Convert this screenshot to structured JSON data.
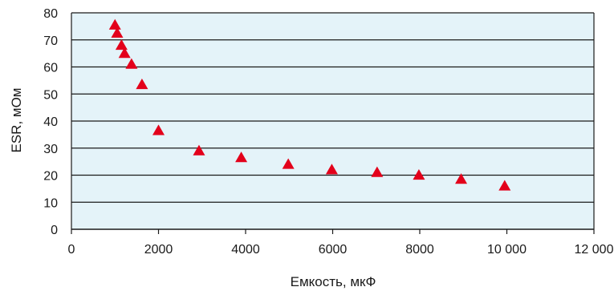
{
  "colors": {
    "plot_background": "#e4f3f9",
    "gridline": "#1a1a1a",
    "marker": "#e3001b",
    "text": "#1a1a1a"
  },
  "chart_data": {
    "type": "scatter",
    "xlabel": "Емкость, мкФ",
    "ylabel": "ESR, мОм",
    "xlim": [
      0,
      12000
    ],
    "ylim": [
      0,
      80
    ],
    "x_ticks": [
      0,
      2000,
      4000,
      6000,
      8000,
      10000,
      12000
    ],
    "x_tick_labels": [
      "0",
      "2000",
      "4000",
      "6000",
      "8000",
      "10 000",
      "12 000"
    ],
    "y_ticks": [
      0,
      10,
      20,
      30,
      40,
      50,
      60,
      70,
      80
    ],
    "y_tick_labels": [
      "0",
      "10",
      "20",
      "30",
      "40",
      "50",
      "60",
      "70",
      "80"
    ],
    "grid": "horizontal",
    "marker": "triangle",
    "series": [
      {
        "x": [
          1000,
          1050,
          1150,
          1220,
          1380,
          1620,
          2000,
          2930,
          3900,
          4980,
          5980,
          7020,
          7980,
          8950,
          9950
        ],
        "y": [
          75.5,
          72.5,
          68,
          65,
          61,
          53.5,
          36.5,
          29,
          26.5,
          24,
          22,
          21,
          20,
          18.5,
          16
        ]
      }
    ]
  }
}
